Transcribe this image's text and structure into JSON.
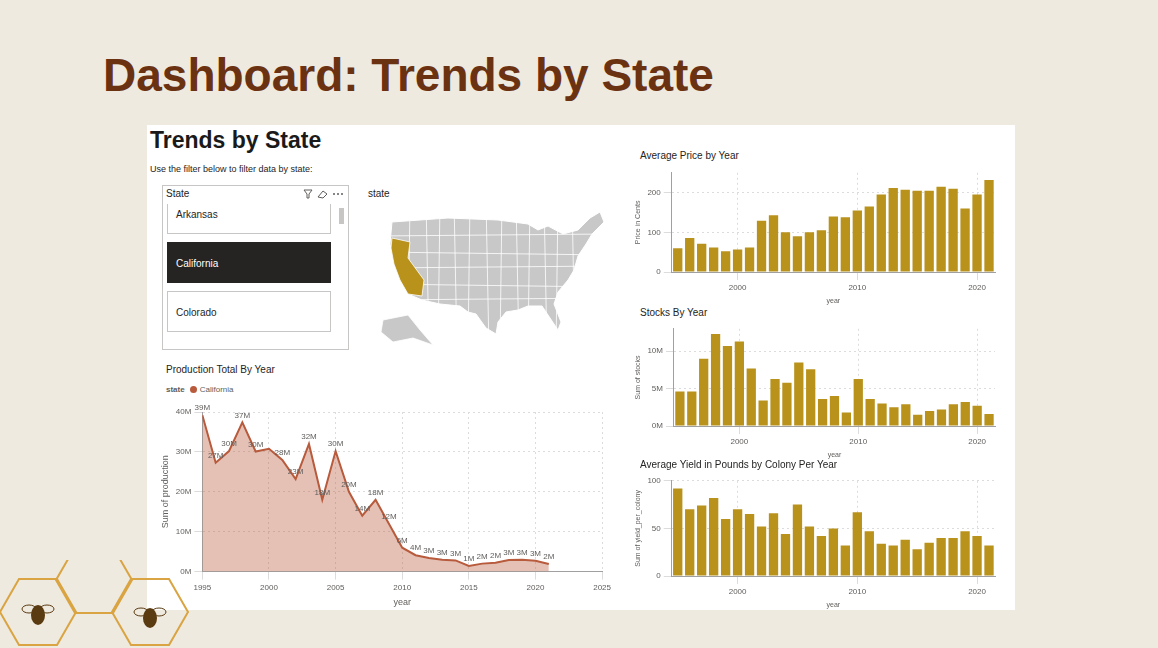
{
  "page": {
    "title": "Dashboard: Trends by State",
    "panel_title": "Trends by State",
    "instruction": "Use the filter below to filter data by state:",
    "slicer": {
      "title": "State",
      "items": [
        "Arkansas",
        "California",
        "Colorado"
      ],
      "selected": "California"
    },
    "map": {
      "title": "state"
    }
  },
  "chart_data": [
    {
      "type": "area",
      "title": "Production Total By Year",
      "x": [
        1995,
        1996,
        1997,
        1998,
        1999,
        2000,
        2001,
        2002,
        2003,
        2004,
        2005,
        2006,
        2007,
        2008,
        2009,
        2010,
        2011,
        2012,
        2013,
        2014,
        2015,
        2016,
        2017,
        2018,
        2019,
        2020,
        2021
      ],
      "series": [
        {
          "name": "California",
          "color": "#b85a3c",
          "values": [
            39200000,
            27300000,
            30200000,
            37400000,
            30100000,
            30800000,
            28000000,
            23200000,
            32000000,
            18000000,
            30200000,
            20000000,
            14000000,
            18000000,
            12000000,
            6000000,
            4100000,
            3400000,
            3000000,
            2800000,
            1400000,
            2000000,
            2200000,
            2900000,
            3000000,
            2700000,
            1900000
          ],
          "value_labels": [
            "39M",
            "27M",
            "30M",
            "37M",
            "30M",
            null,
            "28M",
            "23M",
            "32M",
            "18M",
            "30M",
            "20M",
            "14M",
            "18M",
            "12M",
            "6M",
            "4M",
            "3M",
            "3M",
            "3M",
            "1M",
            "2M",
            "2M",
            "3M",
            "3M",
            "3M",
            "2M"
          ]
        }
      ],
      "legend": "top-left",
      "legend_title": "state",
      "xlabel": "year",
      "ylabel": "Sum of production",
      "xlim": [
        1995,
        2025
      ],
      "xticks": [
        1995,
        2000,
        2005,
        2010,
        2015,
        2020,
        2025
      ],
      "ylim": [
        0,
        40000000
      ],
      "yticks": [
        {
          "value": 0,
          "label": "0M"
        },
        {
          "value": 10000000,
          "label": "10M"
        },
        {
          "value": 20000000,
          "label": "20M"
        },
        {
          "value": 30000000,
          "label": "30M"
        },
        {
          "value": 40000000,
          "label": "40M"
        }
      ],
      "grid": true,
      "data_labels": true
    },
    {
      "type": "bar",
      "title": "Average Price by Year",
      "categories": [
        null,
        null,
        null,
        null,
        null,
        "2000",
        null,
        null,
        null,
        null,
        null,
        null,
        null,
        null,
        null,
        "2010",
        null,
        null,
        null,
        null,
        null,
        null,
        null,
        null,
        null,
        "2020",
        null
      ],
      "values": [
        60,
        86,
        71,
        62,
        52,
        57,
        62,
        129,
        143,
        100,
        90,
        100,
        105,
        140,
        138,
        155,
        165,
        195,
        212,
        207,
        205,
        205,
        215,
        210,
        160,
        195,
        232
      ],
      "color": "#b8921b",
      "xlabel": "year",
      "ylabel": "Price in Cents",
      "ylim": [
        0,
        250
      ],
      "yticks": [
        0,
        100,
        200
      ],
      "grid": true
    },
    {
      "type": "bar",
      "title": "Stocks By Year",
      "categories": [
        null,
        null,
        null,
        null,
        null,
        "2000",
        null,
        null,
        null,
        null,
        null,
        null,
        null,
        null,
        null,
        "2010",
        null,
        null,
        null,
        null,
        null,
        null,
        null,
        null,
        null,
        "2020",
        null
      ],
      "values": [
        4600000,
        4600000,
        9000000,
        12300000,
        10700000,
        11300000,
        7700000,
        3400000,
        6300000,
        5800000,
        8500000,
        7600000,
        3600000,
        4000000,
        1800000,
        6300000,
        3600000,
        3000000,
        2500000,
        2900000,
        1500000,
        2000000,
        2200000,
        2900000,
        3200000,
        2700000,
        1600000
      ],
      "color": "#b8921b",
      "xlabel": "year",
      "ylabel": "Sum of stocks",
      "ylim": [
        0,
        13000000
      ],
      "yticks": [
        {
          "value": 0,
          "label": "0M"
        },
        {
          "value": 5000000,
          "label": "5M"
        },
        {
          "value": 10000000,
          "label": "10M"
        }
      ],
      "grid": true
    },
    {
      "type": "bar",
      "title": "Average Yield in Pounds by Colony Per Year",
      "categories": [
        null,
        null,
        null,
        null,
        null,
        "2000",
        null,
        null,
        null,
        null,
        null,
        null,
        null,
        null,
        null,
        "2010",
        null,
        null,
        null,
        null,
        null,
        null,
        null,
        null,
        null,
        "2020",
        null
      ],
      "values": [
        92,
        70,
        74,
        82,
        60,
        70,
        65,
        52,
        66,
        44,
        75,
        52,
        42,
        50,
        32,
        67,
        47,
        34,
        32,
        38,
        28,
        35,
        40,
        40,
        47,
        42,
        32
      ],
      "color": "#b8921b",
      "xlabel": "year",
      "ylabel": "Sum of yield_per_colony",
      "ylim": [
        0,
        100
      ],
      "yticks": [
        0,
        50,
        100
      ],
      "grid": true
    }
  ]
}
